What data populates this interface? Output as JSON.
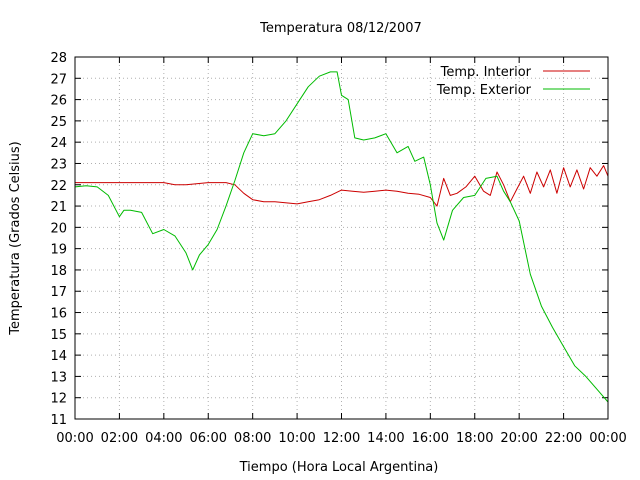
{
  "chart_data": {
    "type": "line",
    "title": "Temperatura 08/12/2007",
    "xlabel": "Tiempo (Hora Local Argentina)",
    "ylabel": "Temperatura (Grados Celsius)",
    "xlim": [
      0,
      24
    ],
    "ylim": [
      11,
      28
    ],
    "x_unit": "hours",
    "grid": true,
    "legend_position": "top-right",
    "xtick_labels": [
      "00:00",
      "02:00",
      "04:00",
      "06:00",
      "08:00",
      "10:00",
      "12:00",
      "14:00",
      "16:00",
      "18:00",
      "20:00",
      "22:00",
      "00:00"
    ],
    "ytick_labels": [
      "11",
      "12",
      "13",
      "14",
      "15",
      "16",
      "17",
      "18",
      "19",
      "20",
      "21",
      "22",
      "23",
      "24",
      "25",
      "26",
      "27",
      "28"
    ],
    "series": [
      {
        "name": "Temp. Interior",
        "color": "#cc0000",
        "x": [
          0,
          1,
          2,
          3,
          4,
          4.5,
          5,
          6,
          6.8,
          7.2,
          7.6,
          8,
          8.5,
          9,
          10,
          10.5,
          11,
          11.5,
          12,
          12.5,
          13,
          13.5,
          14,
          14.5,
          15,
          15.5,
          16,
          16.3,
          16.6,
          16.9,
          17.2,
          17.6,
          18,
          18.4,
          18.7,
          19,
          19.3,
          19.6,
          19.9,
          20.2,
          20.5,
          20.8,
          21.1,
          21.4,
          21.7,
          22,
          22.3,
          22.6,
          22.9,
          23.2,
          23.5,
          23.8,
          24
        ],
        "y": [
          22.1,
          22.1,
          22.1,
          22.1,
          22.1,
          22.0,
          22.0,
          22.1,
          22.1,
          22.0,
          21.6,
          21.3,
          21.2,
          21.2,
          21.1,
          21.2,
          21.3,
          21.5,
          21.75,
          21.7,
          21.65,
          21.7,
          21.75,
          21.7,
          21.6,
          21.55,
          21.4,
          21.0,
          22.3,
          21.5,
          21.6,
          21.9,
          22.4,
          21.7,
          21.5,
          22.6,
          22.0,
          21.2,
          21.8,
          22.4,
          21.6,
          22.6,
          21.9,
          22.7,
          21.6,
          22.8,
          21.9,
          22.7,
          21.8,
          22.8,
          22.4,
          22.9,
          22.4
        ]
      },
      {
        "name": "Temp. Exterior",
        "color": "#00bb00",
        "x": [
          0,
          0.5,
          1,
          1.5,
          2,
          2.2,
          2.5,
          3,
          3.5,
          4,
          4.5,
          5,
          5.3,
          5.6,
          6,
          6.4,
          6.8,
          7.2,
          7.6,
          8,
          8.5,
          9,
          9.5,
          10,
          10.5,
          11,
          11.5,
          11.8,
          12,
          12.3,
          12.6,
          13,
          13.5,
          14,
          14.5,
          15,
          15.3,
          15.7,
          16,
          16.3,
          16.6,
          17,
          17.5,
          18,
          18.5,
          19,
          19.3,
          19.6,
          20,
          20.5,
          21,
          21.5,
          22,
          22.5,
          23,
          23.5,
          24
        ],
        "y": [
          21.9,
          21.95,
          21.9,
          21.5,
          20.5,
          20.8,
          20.8,
          20.7,
          19.7,
          19.9,
          19.6,
          18.8,
          18.0,
          18.7,
          19.2,
          19.9,
          21.0,
          22.2,
          23.5,
          24.4,
          24.3,
          24.4,
          25.0,
          25.8,
          26.6,
          27.1,
          27.3,
          27.3,
          26.2,
          26.0,
          24.2,
          24.1,
          24.2,
          24.4,
          23.5,
          23.8,
          23.1,
          23.3,
          22.0,
          20.2,
          19.4,
          20.8,
          21.4,
          21.5,
          22.3,
          22.4,
          21.7,
          21.2,
          20.3,
          17.8,
          16.3,
          15.3,
          14.4,
          13.5,
          13.0,
          12.4,
          11.8
        ]
      }
    ]
  }
}
